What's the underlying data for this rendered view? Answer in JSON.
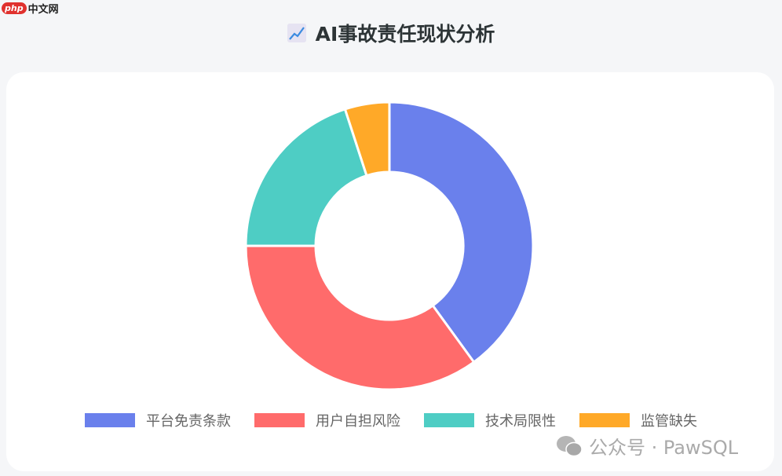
{
  "watermark_logo": "php中文网",
  "logo": {
    "badge": "php",
    "text": "中文网"
  },
  "title": "AI事故责任现状分析",
  "title_icon": "chart-increasing-icon",
  "chart_data": {
    "type": "pie",
    "donut": true,
    "categories": [
      "平台免责条款",
      "用户自担风险",
      "技术局限性",
      "监管缺失"
    ],
    "values": [
      40,
      35,
      20,
      5
    ],
    "colors": [
      "#6a80ec",
      "#ff6b6b",
      "#4ecdc4",
      "#ffa928"
    ],
    "legend_position": "bottom"
  },
  "footer_watermark": "公众号 · PawSQL"
}
